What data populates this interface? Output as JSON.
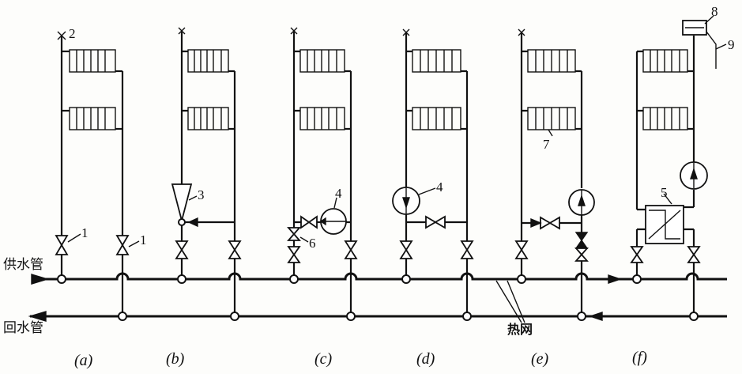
{
  "labels": {
    "supply_pipe": "供水管",
    "return_pipe": "回水管",
    "heat_network": "热网"
  },
  "callouts": {
    "n1": "1",
    "n2": "2",
    "n3": "3",
    "n4": "4",
    "n5": "5",
    "n6": "6",
    "n7": "7",
    "n8": "8",
    "n9": "9"
  },
  "captions": [
    "(a)",
    "(b)",
    "(c)",
    "(d)",
    "(e)",
    "(f)"
  ]
}
